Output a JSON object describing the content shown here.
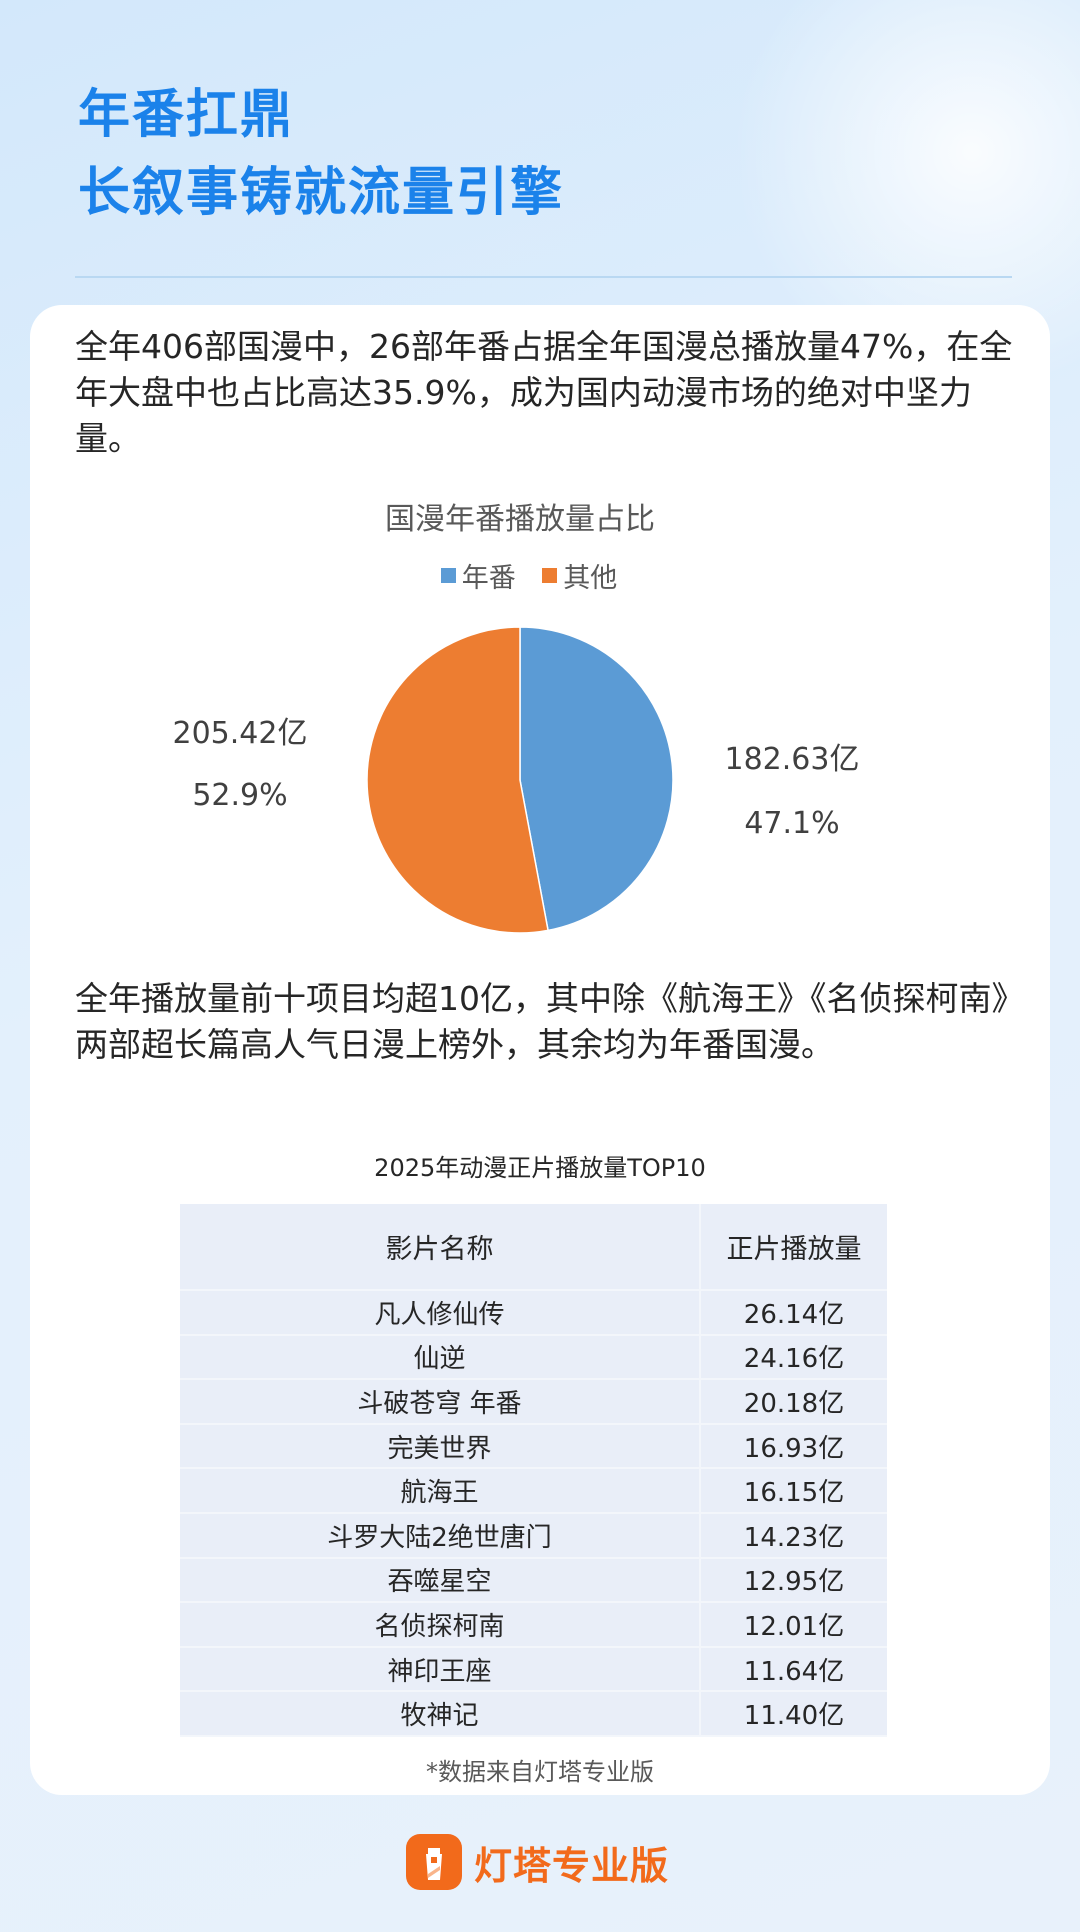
{
  "header": {
    "title_line1": "年番扛鼎",
    "title_line2": "长叙事铸就流量引擎"
  },
  "paragraph1": "全年406部国漫中，26部年番占据全年国漫总播放量47%，在全年大盘中也占比高达35.9%，成为国内动漫市场的绝对中坚力量。",
  "paragraph2": "全年播放量前十项目均超10亿，其中除《航海王》《名侦探柯南》两部超长篇高人气日漫上榜外，其余均为年番国漫。",
  "chart_data": {
    "type": "pie",
    "title": "国漫年番播放量占比",
    "legend_position": "top",
    "series": [
      {
        "name": "年番",
        "value": 182.63,
        "value_label": "182.63亿",
        "percent_label": "47.1%",
        "color": "#5b9bd5"
      },
      {
        "name": "其他",
        "value": 205.42,
        "value_label": "205.42亿",
        "percent_label": "52.9%",
        "color": "#ed7d31"
      }
    ]
  },
  "table": {
    "title": "2025年动漫正片播放量TOP10",
    "headers": [
      "影片名称",
      "正片播放量"
    ],
    "rows": [
      [
        "凡人修仙传",
        "26.14亿"
      ],
      [
        "仙逆",
        "24.16亿"
      ],
      [
        "斗破苍穹 年番",
        "20.18亿"
      ],
      [
        "完美世界",
        "16.93亿"
      ],
      [
        "航海王",
        "16.15亿"
      ],
      [
        "斗罗大陆2绝世唐门",
        "14.23亿"
      ],
      [
        "吞噬星空",
        "12.95亿"
      ],
      [
        "名侦探柯南",
        "12.01亿"
      ],
      [
        "神印王座",
        "11.64亿"
      ],
      [
        "牧神记",
        "11.40亿"
      ]
    ]
  },
  "footnote": "*数据来自灯塔专业版",
  "brand": {
    "name": "灯塔专业版",
    "icon": "lighthouse-icon",
    "color": "#f26a1b"
  }
}
